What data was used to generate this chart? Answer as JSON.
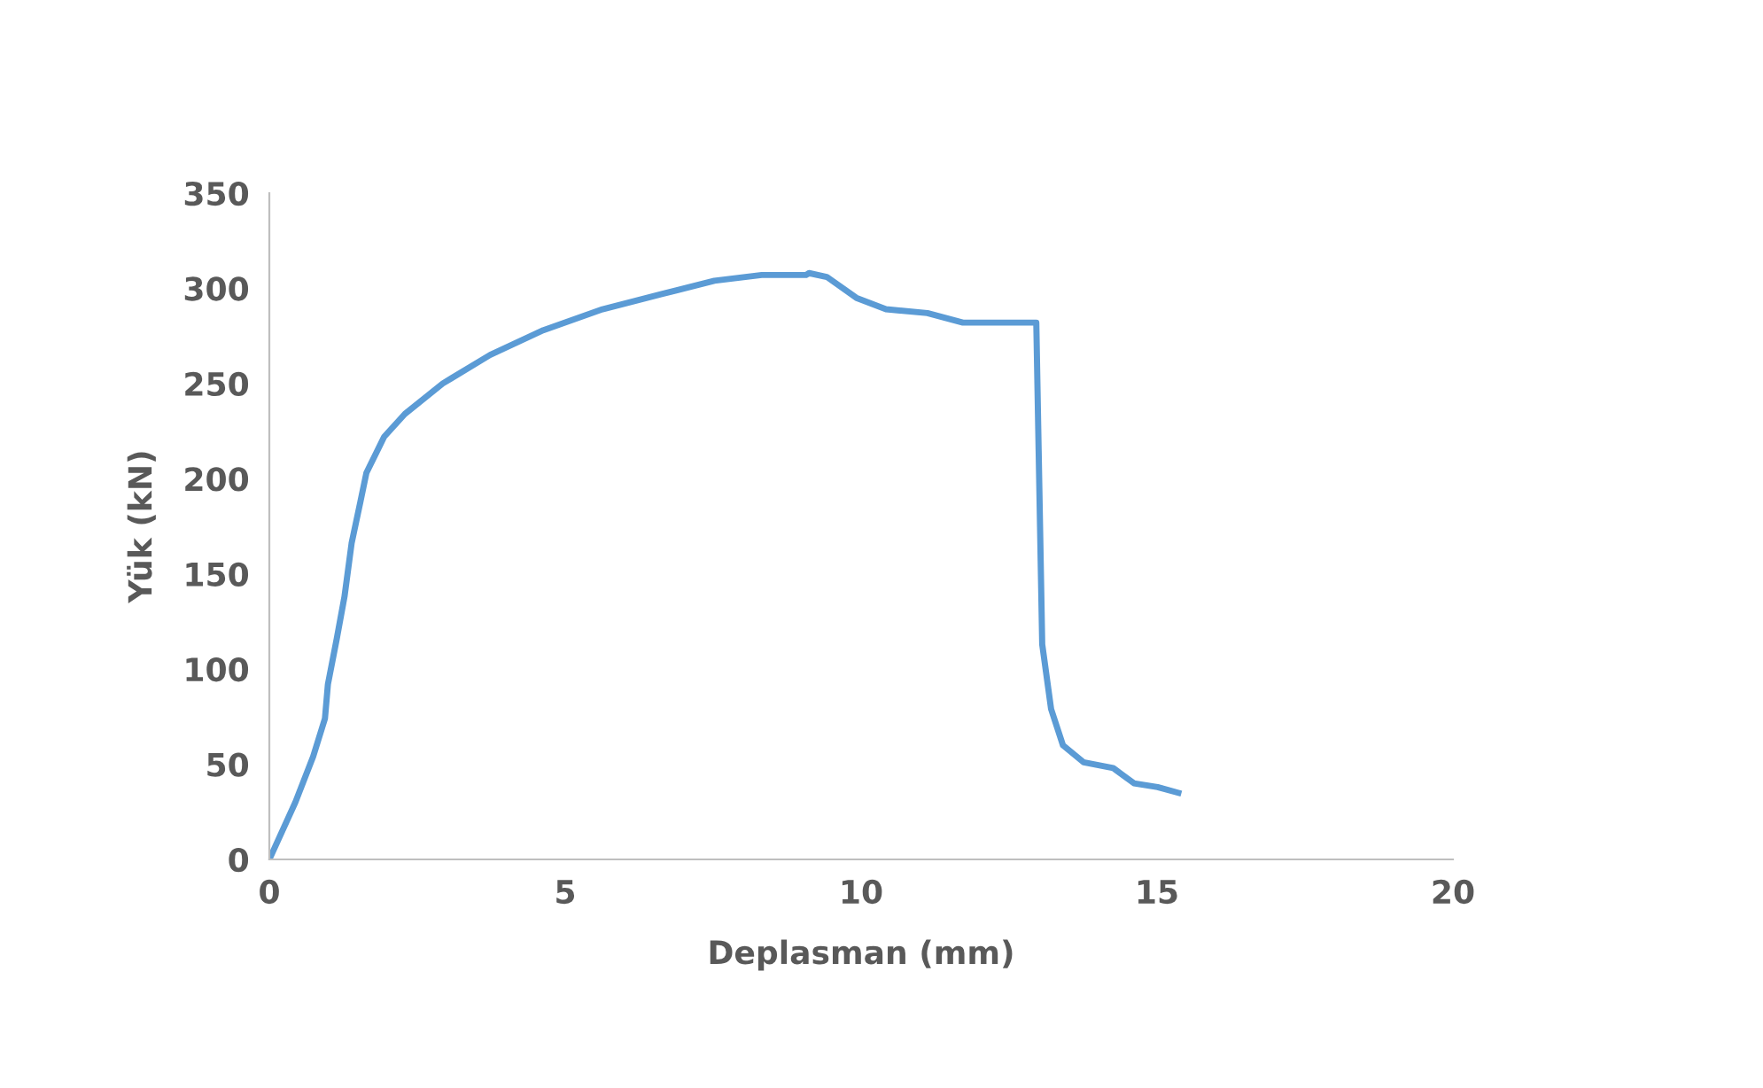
{
  "chart_data": {
    "type": "line",
    "xlabel": "Deplasman (mm)",
    "ylabel": "Yük (kN)",
    "xlim": [
      0,
      20
    ],
    "xticks": [
      0,
      5,
      10,
      15,
      20
    ],
    "ylim": [
      0,
      350
    ],
    "yticks": [
      0,
      50,
      100,
      150,
      200,
      250,
      300,
      350
    ],
    "grid": false,
    "legend": false,
    "marker": "none",
    "line_style": "solid",
    "series": [
      {
        "color": "#5b9bd5",
        "x": [
          0,
          0.44,
          0.74,
          0.94,
          0.99,
          1.14,
          1.27,
          1.39,
          1.54,
          1.64,
          1.94,
          2.29,
          2.93,
          3.73,
          4.63,
          5.63,
          6.63,
          7.52,
          8.32,
          9.07,
          9.12,
          9.42,
          9.92,
          10.42,
          11.12,
          11.72,
          12.96,
          13.06,
          13.21,
          13.41,
          13.76,
          14.26,
          14.61,
          15.01,
          15.36
        ],
        "values": [
          0,
          30,
          54,
          74,
          92,
          116,
          138,
          166,
          188,
          203,
          222,
          234,
          250,
          265,
          278,
          289,
          297,
          304,
          307,
          307,
          308,
          306,
          295,
          289,
          287,
          282,
          282,
          113,
          79,
          60,
          51,
          48,
          40,
          38,
          35
        ]
      }
    ]
  }
}
